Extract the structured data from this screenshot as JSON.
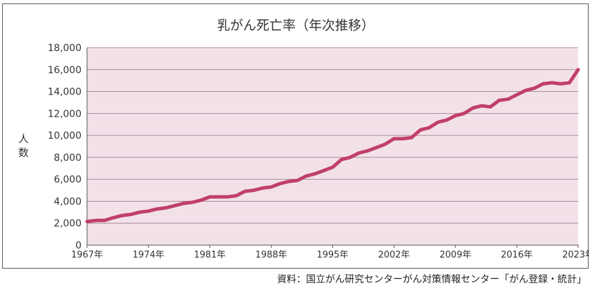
{
  "source": "資料：国立がん研究センターがん対策情報センター「がん登録・統計」",
  "chart_data": {
    "type": "line",
    "title": "乳がん死亡率（年次推移）",
    "xlabel": "",
    "ylabel": "人数",
    "ylim": [
      0,
      18000
    ],
    "yticks": [
      0,
      2000,
      4000,
      6000,
      8000,
      10000,
      12000,
      14000,
      16000,
      18000
    ],
    "ytick_labels": [
      "0",
      "2,000",
      "4,000",
      "6,000",
      "8,000",
      "10,000",
      "12,000",
      "14,000",
      "16,000",
      "18,000"
    ],
    "xlim": [
      1967,
      2023
    ],
    "xticks": [
      1967,
      1974,
      1981,
      1988,
      1995,
      2002,
      2009,
      2016,
      2023
    ],
    "xtick_labels": [
      "1967年",
      "1974年",
      "1981年",
      "1988年",
      "1995年",
      "2002年",
      "2009年",
      "2016年",
      "2023年"
    ],
    "grid": "horizontal",
    "legend": "none",
    "colors": {
      "line": "#c0406a",
      "plot_bg": "#f3e1ea",
      "grid": "#a88a97"
    },
    "series": [
      {
        "x": [
          1967,
          1968,
          1969,
          1970,
          1971,
          1972,
          1973,
          1974,
          1975,
          1976,
          1977,
          1978,
          1979,
          1980,
          1981,
          1982,
          1983,
          1984,
          1985,
          1986,
          1987,
          1988,
          1989,
          1990,
          1991,
          1992,
          1993,
          1994,
          1995,
          1996,
          1997,
          1998,
          1999,
          2000,
          2001,
          2002,
          2003,
          2004,
          2005,
          2006,
          2007,
          2008,
          2009,
          2010,
          2011,
          2012,
          2013,
          2014,
          2015,
          2016,
          2017,
          2018,
          2019,
          2020,
          2021,
          2022,
          2023
        ],
        "values": [
          2150,
          2250,
          2250,
          2500,
          2700,
          2800,
          3000,
          3100,
          3300,
          3400,
          3600,
          3800,
          3900,
          4100,
          4400,
          4400,
          4400,
          4500,
          4900,
          5000,
          5200,
          5300,
          5600,
          5800,
          5900,
          6300,
          6500,
          6800,
          7100,
          7800,
          8000,
          8400,
          8600,
          8900,
          9200,
          9700,
          9700,
          9800,
          10500,
          10700,
          11200,
          11400,
          11800,
          12000,
          12500,
          12700,
          12600,
          13200,
          13300,
          13700,
          14100,
          14300,
          14700,
          14800,
          14700,
          14800,
          16000
        ]
      }
    ]
  }
}
